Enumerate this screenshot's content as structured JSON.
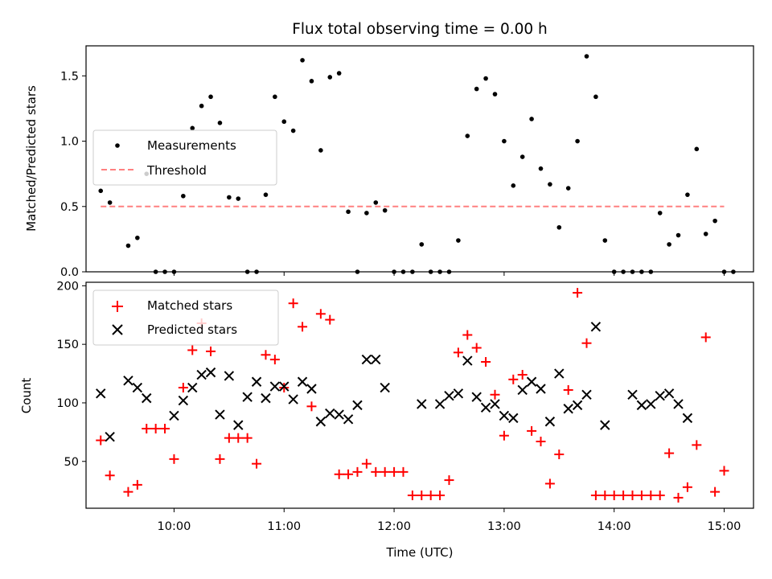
{
  "chart_data": [
    {
      "type": "scatter",
      "title": "Flux total observing time = 0.00 h",
      "xlabel": "",
      "ylabel": "Matched/Predicted stars",
      "ylim": [
        0,
        1.73
      ],
      "yticks": [
        "0.0",
        "0.5",
        "1.0",
        "1.5"
      ],
      "ytick_values": [
        0,
        0.5,
        1.0,
        1.5
      ],
      "xlim": [
        "09:12",
        "15:16"
      ],
      "xtick_values": [
        "10:00",
        "11:00",
        "12:00",
        "13:00",
        "14:00",
        "15:00"
      ],
      "grid": false,
      "legend_position": "center-left",
      "colors": {
        "measurements": "#000000",
        "threshold": "#ff8080"
      },
      "series": [
        {
          "name": "Measurements",
          "marker": "dot",
          "x": [
            "09:20",
            "09:25",
            "09:35",
            "09:40",
            "09:45",
            "09:50",
            "09:55",
            "10:00",
            "10:05",
            "10:10",
            "10:15",
            "10:20",
            "10:25",
            "10:30",
            "10:35",
            "10:40",
            "10:45",
            "10:50",
            "10:55",
            "11:00",
            "11:05",
            "11:10",
            "11:15",
            "11:20",
            "11:25",
            "11:30",
            "11:35",
            "11:40",
            "11:45",
            "11:50",
            "11:55",
            "12:00",
            "12:05",
            "12:10",
            "12:15",
            "12:20",
            "12:25",
            "12:30",
            "12:35",
            "12:40",
            "12:45",
            "12:50",
            "12:55",
            "13:00",
            "13:05",
            "13:10",
            "13:15",
            "13:20",
            "13:25",
            "13:30",
            "13:35",
            "13:40",
            "13:45",
            "13:50",
            "13:55",
            "14:00",
            "14:05",
            "14:10",
            "14:15",
            "14:20",
            "14:25",
            "14:30",
            "14:35",
            "14:40",
            "14:45",
            "14:50",
            "14:55",
            "15:00",
            "15:05"
          ],
          "y": [
            0.62,
            0.53,
            0.2,
            0.26,
            0.75,
            0.0,
            0.0,
            0.0,
            0.58,
            1.1,
            1.27,
            1.34,
            1.14,
            0.57,
            0.56,
            0.0,
            0.0,
            0.59,
            1.34,
            1.15,
            1.08,
            1.62,
            1.46,
            0.93,
            1.49,
            1.52,
            0.46,
            0.0,
            0.45,
            0.53,
            0.47,
            0.0,
            0.0,
            0.0,
            0.21,
            0.0,
            0.0,
            0.0,
            0.24,
            1.04,
            1.4,
            1.48,
            1.36,
            1.0,
            0.66,
            0.88,
            1.17,
            0.79,
            0.67,
            0.34,
            0.64,
            1.0,
            1.65,
            1.34,
            0.24,
            0.0,
            0.0,
            0.0,
            0.0,
            0.0,
            0.45,
            0.21,
            0.28,
            0.59,
            0.94,
            0.29,
            0.39,
            0.0,
            0.0
          ]
        },
        {
          "name": "Threshold",
          "marker": "dashed-line",
          "x": [
            "09:20",
            "15:00"
          ],
          "y": [
            0.5,
            0.5
          ]
        }
      ]
    },
    {
      "type": "scatter",
      "title": "",
      "xlabel": "Time (UTC)",
      "ylabel": "Count",
      "ylim": [
        10,
        203
      ],
      "yticks": [
        "50",
        "100",
        "150",
        "200"
      ],
      "ytick_values": [
        50,
        100,
        150,
        200
      ],
      "xlim": [
        "09:12",
        "15:16"
      ],
      "xticks": [
        "10:00",
        "11:00",
        "12:00",
        "13:00",
        "14:00",
        "15:00"
      ],
      "grid": false,
      "legend_position": "upper-left",
      "colors": {
        "matched": "#ff0000",
        "predicted": "#000000"
      },
      "series": [
        {
          "name": "Matched stars",
          "marker": "plus",
          "x": [
            "09:20",
            "09:25",
            "09:35",
            "09:40",
            "09:45",
            "09:50",
            "09:55",
            "10:00",
            "10:05",
            "10:10",
            "10:15",
            "10:20",
            "10:25",
            "10:30",
            "10:35",
            "10:40",
            "10:45",
            "10:50",
            "10:55",
            "11:00",
            "11:05",
            "11:10",
            "11:15",
            "11:20",
            "11:25",
            "11:30",
            "11:35",
            "11:40",
            "11:45",
            "11:50",
            "11:55",
            "12:00",
            "12:05",
            "12:10",
            "12:15",
            "12:20",
            "12:25",
            "12:30",
            "12:35",
            "12:40",
            "12:45",
            "12:50",
            "12:55",
            "13:00",
            "13:05",
            "13:10",
            "13:15",
            "13:20",
            "13:25",
            "13:30",
            "13:35",
            "13:40",
            "13:45",
            "13:50",
            "13:55",
            "14:00",
            "14:05",
            "14:10",
            "14:15",
            "14:20",
            "14:25",
            "14:30",
            "14:35",
            "14:40",
            "14:45",
            "14:50",
            "14:55",
            "15:00"
          ],
          "y": [
            68,
            38,
            24,
            30,
            78,
            78,
            78,
            52,
            113,
            145,
            168,
            144,
            52,
            70,
            70,
            70,
            48,
            141,
            137,
            113,
            185,
            165,
            97,
            176,
            171,
            39,
            39,
            41,
            48,
            41,
            41,
            41,
            41,
            21,
            21,
            21,
            21,
            34,
            143,
            158,
            147,
            135,
            107,
            72,
            120,
            124,
            76,
            67,
            31,
            56,
            111,
            194,
            151,
            21,
            21,
            21,
            21,
            21,
            21,
            21,
            21,
            57,
            19,
            28,
            64,
            156,
            24,
            42
          ]
        },
        {
          "name": "Predicted stars",
          "marker": "x",
          "x": [
            "09:20",
            "09:25",
            "09:35",
            "09:40",
            "09:45",
            "10:00",
            "10:05",
            "10:10",
            "10:15",
            "10:20",
            "10:25",
            "10:30",
            "10:35",
            "10:40",
            "10:45",
            "10:50",
            "10:55",
            "11:00",
            "11:05",
            "11:10",
            "11:15",
            "11:20",
            "11:25",
            "11:30",
            "11:35",
            "11:40",
            "11:45",
            "11:50",
            "11:55",
            "12:15",
            "12:25",
            "12:30",
            "12:35",
            "12:40",
            "12:45",
            "12:50",
            "12:55",
            "13:00",
            "13:05",
            "13:10",
            "13:15",
            "13:20",
            "13:25",
            "13:30",
            "13:35",
            "13:40",
            "13:45",
            "13:50",
            "13:55",
            "14:10",
            "14:15",
            "14:20",
            "14:25",
            "14:30",
            "14:35",
            "14:40"
          ],
          "y": [
            108,
            71,
            119,
            113,
            104,
            89,
            102,
            113,
            124,
            126,
            90,
            123,
            81,
            105,
            118,
            104,
            114,
            114,
            103,
            118,
            112,
            84,
            91,
            90,
            86,
            98,
            137,
            137,
            113,
            99,
            99,
            106,
            108,
            136,
            105,
            96,
            99,
            89,
            87,
            111,
            118,
            112,
            84,
            125,
            95,
            98,
            107,
            165,
            81,
            107,
            98,
            99,
            106,
            108,
            99,
            87
          ]
        }
      ]
    }
  ]
}
